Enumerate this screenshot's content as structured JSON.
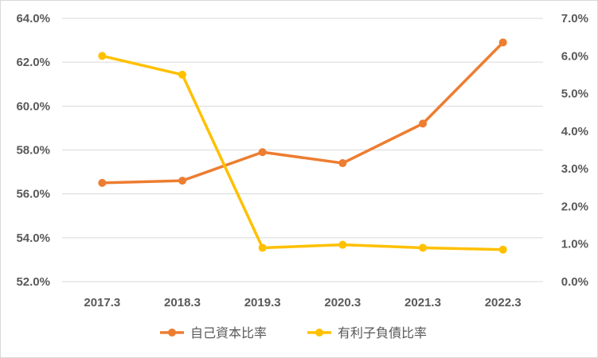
{
  "chart_data": {
    "type": "line",
    "categories": [
      "2017.3",
      "2018.3",
      "2019.3",
      "2020.3",
      "2021.3",
      "2022.3"
    ],
    "grid": true,
    "legend_position": "bottom",
    "y_left": {
      "ylim": [
        52.0,
        64.0
      ],
      "ticks": [
        52.0,
        54.0,
        56.0,
        58.0,
        60.0,
        62.0,
        64.0
      ],
      "tick_labels": [
        "52.0%",
        "54.0%",
        "56.0%",
        "58.0%",
        "60.0%",
        "62.0%",
        "64.0%"
      ]
    },
    "y_right": {
      "ylim": [
        0.0,
        7.0
      ],
      "ticks": [
        0.0,
        1.0,
        2.0,
        3.0,
        4.0,
        5.0,
        6.0,
        7.0
      ],
      "tick_labels": [
        "0.0%",
        "1.0%",
        "2.0%",
        "3.0%",
        "4.0%",
        "5.0%",
        "6.0%",
        "7.0%"
      ]
    },
    "series": [
      {
        "name": "自己資本比率",
        "axis": "left",
        "color": "#ED7D31",
        "values": [
          56.5,
          56.6,
          57.9,
          57.4,
          59.2,
          62.9
        ]
      },
      {
        "name": "有利子負債比率",
        "axis": "right",
        "color": "#FFC000",
        "values": [
          6.0,
          5.5,
          0.9,
          0.98,
          0.9,
          0.85
        ]
      }
    ]
  }
}
